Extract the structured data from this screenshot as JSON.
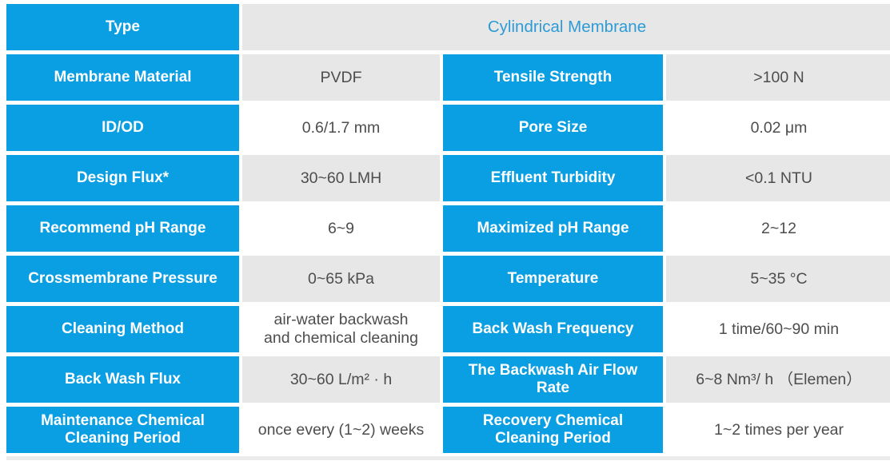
{
  "table": {
    "title_row": {
      "label": "Type",
      "value": "Cylindrical Membrane"
    },
    "rows": [
      {
        "label1": "Membrane Material",
        "value1": "PVDF",
        "label2": "Tensile Strength",
        "value2": ">100 N"
      },
      {
        "label1": "ID/OD",
        "value1": "0.6/1.7 mm",
        "label2": "Pore Size",
        "value2": "0.02 μm"
      },
      {
        "label1": "Design Flux*",
        "value1": "30~60 LMH",
        "label2": "Effluent Turbidity",
        "value2": "<0.1 NTU"
      },
      {
        "label1": "Recommend pH Range",
        "value1": "6~9",
        "label2": "Maximized pH Range",
        "value2": "2~12"
      },
      {
        "label1": "Crossmembrane Pressure",
        "value1": "0~65 kPa",
        "label2": "Temperature",
        "value2": "5~35 °C"
      },
      {
        "label1": "Cleaning Method",
        "value1": "air-water backwash\nand chemical cleaning",
        "label2": "Back Wash Frequency",
        "value2": "1 time/60~90 min"
      },
      {
        "label1": "Back Wash Flux",
        "value1": "30~60 L/m² · h",
        "label2": "The Backwash Air Flow\nRate",
        "value2": "6~8 Nm³/ h （Elemen）"
      },
      {
        "label1": "Maintenance Chemical\nCleaning Period",
        "value1": "once every (1~2) weeks",
        "label2": "Recovery Chemical\nCleaning Period",
        "value2": "1~2 times per year"
      }
    ],
    "colors": {
      "label_background": "#0A9EE2",
      "label_text": "#FFFFFF",
      "value_text": "#4D4D4F",
      "header_value_text": "#2E9BD6",
      "shaded_cell_background": "#E7E7E7",
      "plain_cell_background": "#FFFFFF"
    }
  }
}
